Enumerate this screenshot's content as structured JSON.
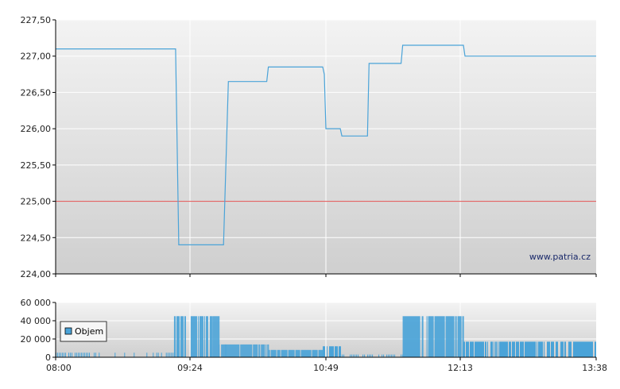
{
  "chart_data": [
    {
      "type": "line",
      "name": "price-chart",
      "x_ticks": [
        "08:00",
        "09:24",
        "10:49",
        "12:13",
        "13:38"
      ],
      "x_range_minutes": [
        480,
        818
      ],
      "ylim": [
        224.0,
        227.5
      ],
      "y_ticks": [
        "224,00",
        "224,50",
        "225,00",
        "225,50",
        "226,00",
        "226,50",
        "227,00",
        "227,50"
      ],
      "y_tick_values": [
        224.0,
        224.5,
        225.0,
        225.5,
        226.0,
        226.5,
        227.0,
        227.5
      ],
      "reference_line": {
        "value": 225.0,
        "color": "#e05050"
      },
      "line_color": "#4aa3d8",
      "grid": true,
      "watermark": "www.patria.cz",
      "series": [
        {
          "points": [
            [
              "08:00",
              227.1
            ],
            [
              "09:15",
              227.1
            ],
            [
              "09:17",
              224.4
            ],
            [
              "09:45",
              224.4
            ],
            [
              "09:48",
              226.65
            ],
            [
              "10:12",
              226.65
            ],
            [
              "10:13",
              226.85
            ],
            [
              "10:47",
              226.85
            ],
            [
              "10:48",
              226.75
            ],
            [
              "10:49",
              226.0
            ],
            [
              "10:58",
              226.0
            ],
            [
              "10:59",
              225.9
            ],
            [
              "11:15",
              225.9
            ],
            [
              "11:16",
              226.9
            ],
            [
              "11:36",
              226.9
            ],
            [
              "11:37",
              227.15
            ],
            [
              "12:15",
              227.15
            ],
            [
              "12:16",
              227.0
            ],
            [
              "13:38",
              227.0
            ]
          ]
        }
      ]
    },
    {
      "type": "bar",
      "name": "volume-chart",
      "x_ticks": [
        "08:00",
        "09:24",
        "10:49",
        "12:13",
        "13:38"
      ],
      "ylim": [
        0,
        60000
      ],
      "y_ticks": [
        "0",
        "20 000",
        "40 000",
        "60 000"
      ],
      "y_tick_values": [
        0,
        20000,
        40000,
        60000
      ],
      "bar_color": "#4aa3d8",
      "legend": {
        "label": "Objem",
        "position": "top-left"
      },
      "series": [
        {
          "segments": [
            {
              "from": "08:00",
              "to": "08:25",
              "value": 5000,
              "step": 2,
              "density": 0.7
            },
            {
              "from": "08:25",
              "to": "09:02",
              "value": 5000,
              "step": 4,
              "density": 0.25
            },
            {
              "from": "09:02",
              "to": "09:14",
              "value": 5000,
              "step": 2,
              "density": 0.6
            },
            {
              "from": "09:14",
              "to": "09:38",
              "value": 45000,
              "step": 1,
              "density": 0.7
            },
            {
              "from": "09:38",
              "to": "09:42",
              "value": 45000,
              "step": 1,
              "density": 0.9
            },
            {
              "from": "09:42",
              "to": "09:46",
              "value": 14000,
              "step": 1,
              "density": 0.6
            },
            {
              "from": "09:46",
              "to": "10:13",
              "value": 14000,
              "step": 1,
              "density": 0.9
            },
            {
              "from": "10:13",
              "to": "10:47",
              "value": 8000,
              "step": 1,
              "density": 0.85
            },
            {
              "from": "10:47",
              "to": "10:58",
              "value": 12000,
              "step": 1,
              "density": 0.8
            },
            {
              "from": "10:58",
              "to": "11:37",
              "value": 3000,
              "step": 2,
              "density": 0.6
            },
            {
              "from": "11:37",
              "to": "12:15",
              "value": 45000,
              "step": 1,
              "density": 0.75
            },
            {
              "from": "12:15",
              "to": "13:38",
              "value": 17000,
              "step": 1,
              "density": 0.75
            }
          ]
        }
      ]
    }
  ]
}
